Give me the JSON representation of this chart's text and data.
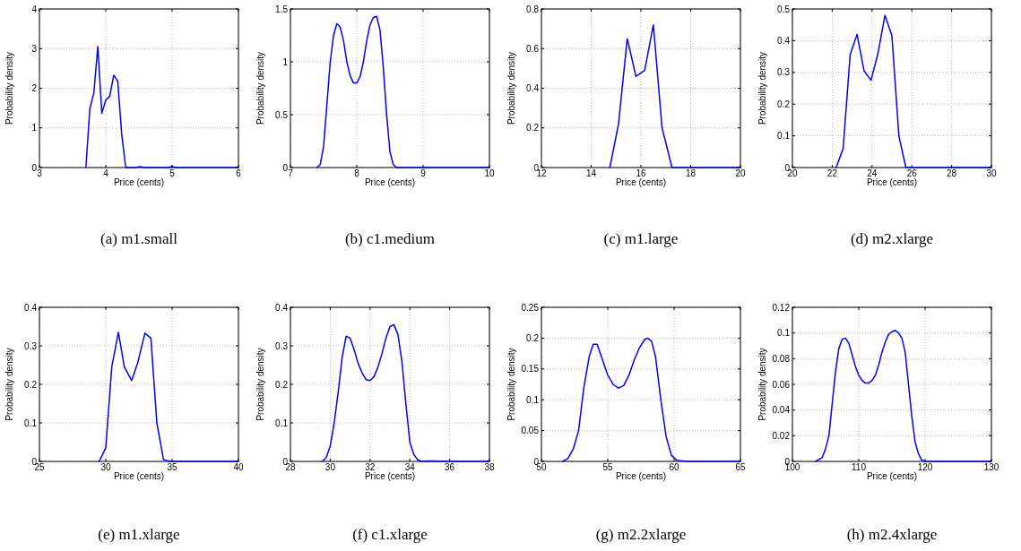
{
  "chart_data": [
    {
      "type": "line",
      "title": "(a) m1.small",
      "xlabel": "Price (cents)",
      "ylabel": "Probability density",
      "xlim": [
        3,
        6
      ],
      "xticks": [
        3,
        4,
        5,
        6
      ],
      "ylim": [
        0,
        4
      ],
      "yticks": [
        0,
        1,
        2,
        3,
        4
      ],
      "grid": true,
      "x": [
        3.7,
        3.76,
        3.82,
        3.88,
        3.94,
        4.0,
        4.06,
        4.12,
        4.18,
        4.24,
        4.3,
        4.45,
        4.5,
        4.6,
        4.95,
        5.0,
        5.05,
        6
      ],
      "series": [
        {
          "color": "#0000ff",
          "values": [
            0,
            1.48,
            1.88,
            3.05,
            1.37,
            1.7,
            1.8,
            2.33,
            2.18,
            0.85,
            0,
            0,
            0.02,
            0,
            0,
            0.03,
            0,
            0
          ]
        }
      ]
    },
    {
      "type": "line",
      "title": "(b) c1.medium",
      "xlabel": "Price (cents)",
      "ylabel": "Probability density",
      "xlim": [
        7,
        10
      ],
      "xticks": [
        7,
        8,
        9,
        10
      ],
      "ylim": [
        0,
        1.5
      ],
      "yticks": [
        0,
        0.5,
        1,
        1.5
      ],
      "grid": true,
      "x": [
        7.4,
        7.45,
        7.5,
        7.55,
        7.6,
        7.65,
        7.7,
        7.75,
        7.8,
        7.85,
        7.9,
        7.95,
        8.0,
        8.05,
        8.1,
        8.15,
        8.2,
        8.25,
        8.3,
        8.35,
        8.4,
        8.45,
        8.5,
        8.55,
        8.6,
        10
      ],
      "series": [
        {
          "color": "#0000ff",
          "values": [
            0,
            0.03,
            0.2,
            0.6,
            1.0,
            1.25,
            1.36,
            1.33,
            1.2,
            1.0,
            0.87,
            0.8,
            0.8,
            0.86,
            1.0,
            1.2,
            1.35,
            1.42,
            1.43,
            1.3,
            0.95,
            0.5,
            0.15,
            0.03,
            0,
            0
          ]
        }
      ]
    },
    {
      "type": "line",
      "title": "(c) m1.large",
      "xlabel": "Price (cents)",
      "ylabel": "Probability density",
      "xlim": [
        12,
        20
      ],
      "xticks": [
        12,
        14,
        16,
        18,
        20
      ],
      "ylim": [
        0,
        0.8
      ],
      "yticks": [
        0,
        0.2,
        0.4,
        0.6,
        0.8
      ],
      "grid": true,
      "x": [
        14.75,
        15.1,
        15.45,
        15.8,
        16.15,
        16.5,
        16.85,
        17.25,
        20
      ],
      "series": [
        {
          "color": "#0000ff",
          "values": [
            0,
            0.22,
            0.65,
            0.46,
            0.49,
            0.72,
            0.2,
            0,
            0
          ]
        }
      ]
    },
    {
      "type": "line",
      "title": "(d) m2.xlarge",
      "xlabel": "Price (cents)",
      "ylabel": "Probability density",
      "xlim": [
        20,
        30
      ],
      "xticks": [
        20,
        22,
        24,
        26,
        28,
        30
      ],
      "ylim": [
        0,
        0.5
      ],
      "yticks": [
        0,
        0.1,
        0.2,
        0.3,
        0.4,
        0.5
      ],
      "grid": true,
      "x": [
        22.2,
        22.55,
        22.9,
        23.25,
        23.6,
        23.95,
        24.3,
        24.65,
        25.0,
        25.35,
        25.7,
        30
      ],
      "series": [
        {
          "color": "#0000ff",
          "values": [
            0,
            0.06,
            0.355,
            0.42,
            0.305,
            0.275,
            0.36,
            0.48,
            0.415,
            0.1,
            0,
            0
          ]
        }
      ]
    },
    {
      "type": "line",
      "title": "(e) m1.xlarge",
      "xlabel": "Price (cents)",
      "ylabel": "Probability density",
      "xlim": [
        25,
        40
      ],
      "xticks": [
        25,
        30,
        35,
        40
      ],
      "ylim": [
        0,
        0.4
      ],
      "yticks": [
        0,
        0.1,
        0.2,
        0.3,
        0.4
      ],
      "grid": true,
      "x": [
        29.5,
        30,
        30.45,
        30.95,
        31.4,
        31.95,
        32.4,
        32.95,
        33.4,
        33.85,
        34.35,
        34.8,
        40
      ],
      "series": [
        {
          "color": "#0000ff",
          "values": [
            0,
            0.035,
            0.245,
            0.335,
            0.245,
            0.21,
            0.255,
            0.333,
            0.32,
            0.1,
            0.005,
            0,
            0
          ]
        }
      ]
    },
    {
      "type": "line",
      "title": "(f) c1.xlarge",
      "xlabel": "Price (cents)",
      "ylabel": "Probability density",
      "xlim": [
        28,
        38
      ],
      "xticks": [
        28,
        30,
        32,
        34,
        36,
        38
      ],
      "ylim": [
        0,
        0.4
      ],
      "yticks": [
        0,
        0.1,
        0.2,
        0.3,
        0.4
      ],
      "grid": true,
      "x": [
        29.6,
        29.8,
        30,
        30.2,
        30.4,
        30.6,
        30.8,
        31,
        31.2,
        31.4,
        31.6,
        31.8,
        32,
        32.2,
        32.4,
        32.6,
        32.8,
        33,
        33.2,
        33.4,
        33.6,
        33.8,
        34,
        34.2,
        34.4,
        34.6,
        35,
        36,
        38
      ],
      "series": [
        {
          "color": "#0000ff",
          "values": [
            0,
            0.01,
            0.04,
            0.1,
            0.18,
            0.27,
            0.325,
            0.32,
            0.29,
            0.255,
            0.23,
            0.212,
            0.21,
            0.22,
            0.245,
            0.28,
            0.32,
            0.35,
            0.355,
            0.33,
            0.26,
            0.15,
            0.05,
            0.018,
            0.004,
            0,
            0.001,
            0,
            0
          ]
        }
      ]
    },
    {
      "type": "line",
      "title": "(g) m2.2xlarge",
      "xlabel": "Price (cents)",
      "ylabel": "Probability density",
      "xlim": [
        50,
        65
      ],
      "xticks": [
        50,
        55,
        60,
        65
      ],
      "ylim": [
        0,
        0.25
      ],
      "yticks": [
        0,
        0.05,
        0.1,
        0.15,
        0.2,
        0.25
      ],
      "grid": true,
      "x": [
        51.6,
        52,
        52.4,
        52.8,
        53.2,
        53.6,
        53.9,
        54.2,
        54.6,
        55,
        55.4,
        55.8,
        56.2,
        56.6,
        57,
        57.4,
        57.8,
        58,
        58.3,
        58.6,
        59,
        59.4,
        59.8,
        60.2,
        61,
        65
      ],
      "series": [
        {
          "color": "#0000ff",
          "values": [
            0,
            0.005,
            0.02,
            0.05,
            0.12,
            0.17,
            0.19,
            0.19,
            0.165,
            0.14,
            0.125,
            0.119,
            0.123,
            0.14,
            0.165,
            0.185,
            0.198,
            0.2,
            0.195,
            0.17,
            0.1,
            0.04,
            0.01,
            0.002,
            0,
            0
          ]
        }
      ]
    },
    {
      "type": "line",
      "title": "(h) m2.4xlarge",
      "xlabel": "Price (cents)",
      "ylabel": "Probability density",
      "xlim": [
        100,
        130
      ],
      "xticks": [
        100,
        110,
        120,
        130
      ],
      "ylim": [
        0,
        0.12
      ],
      "yticks": [
        0,
        0.02,
        0.04,
        0.06,
        0.08,
        0.1,
        0.12
      ],
      "grid": true,
      "x": [
        103.5,
        104.5,
        105,
        105.5,
        106,
        106.5,
        107,
        107.5,
        108,
        108.5,
        109,
        109.5,
        110,
        110.5,
        111,
        111.5,
        112,
        112.5,
        113,
        113.5,
        114,
        114.5,
        115,
        115.5,
        116,
        116.5,
        117,
        117.5,
        118,
        118.5,
        119,
        119.5,
        120,
        130
      ],
      "series": [
        {
          "color": "#0000ff",
          "values": [
            0,
            0.003,
            0.01,
            0.02,
            0.045,
            0.07,
            0.088,
            0.095,
            0.096,
            0.092,
            0.083,
            0.074,
            0.067,
            0.063,
            0.061,
            0.061,
            0.063,
            0.067,
            0.075,
            0.085,
            0.093,
            0.099,
            0.101,
            0.102,
            0.1,
            0.096,
            0.085,
            0.06,
            0.035,
            0.015,
            0.006,
            0.001,
            0,
            0
          ]
        }
      ]
    }
  ]
}
